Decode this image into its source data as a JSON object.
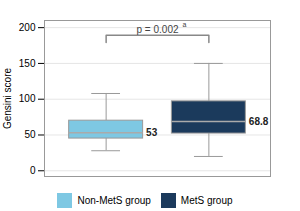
{
  "chart_data": {
    "type": "box",
    "ylabel": "Gensini score",
    "series": [
      {
        "name": "Non-MetS group",
        "color": "#7EC8E3",
        "median": 53,
        "q1": 45,
        "q3": 70,
        "whisker_low": 28,
        "whisker_high": 108
      },
      {
        "name": "MetS group",
        "color": "#1B3A5C",
        "median": 68.8,
        "q1": 52,
        "q3": 97,
        "whisker_low": 20,
        "whisker_high": 150
      }
    ],
    "ylim": [
      -8,
      210
    ],
    "yticks": [
      0,
      50,
      100,
      150,
      200
    ],
    "grid": true,
    "data_labels": true,
    "tick_labels": "y",
    "legend": "bottom",
    "annotations": [
      {
        "text": "p = 0.002",
        "superscript": "a"
      }
    ]
  }
}
